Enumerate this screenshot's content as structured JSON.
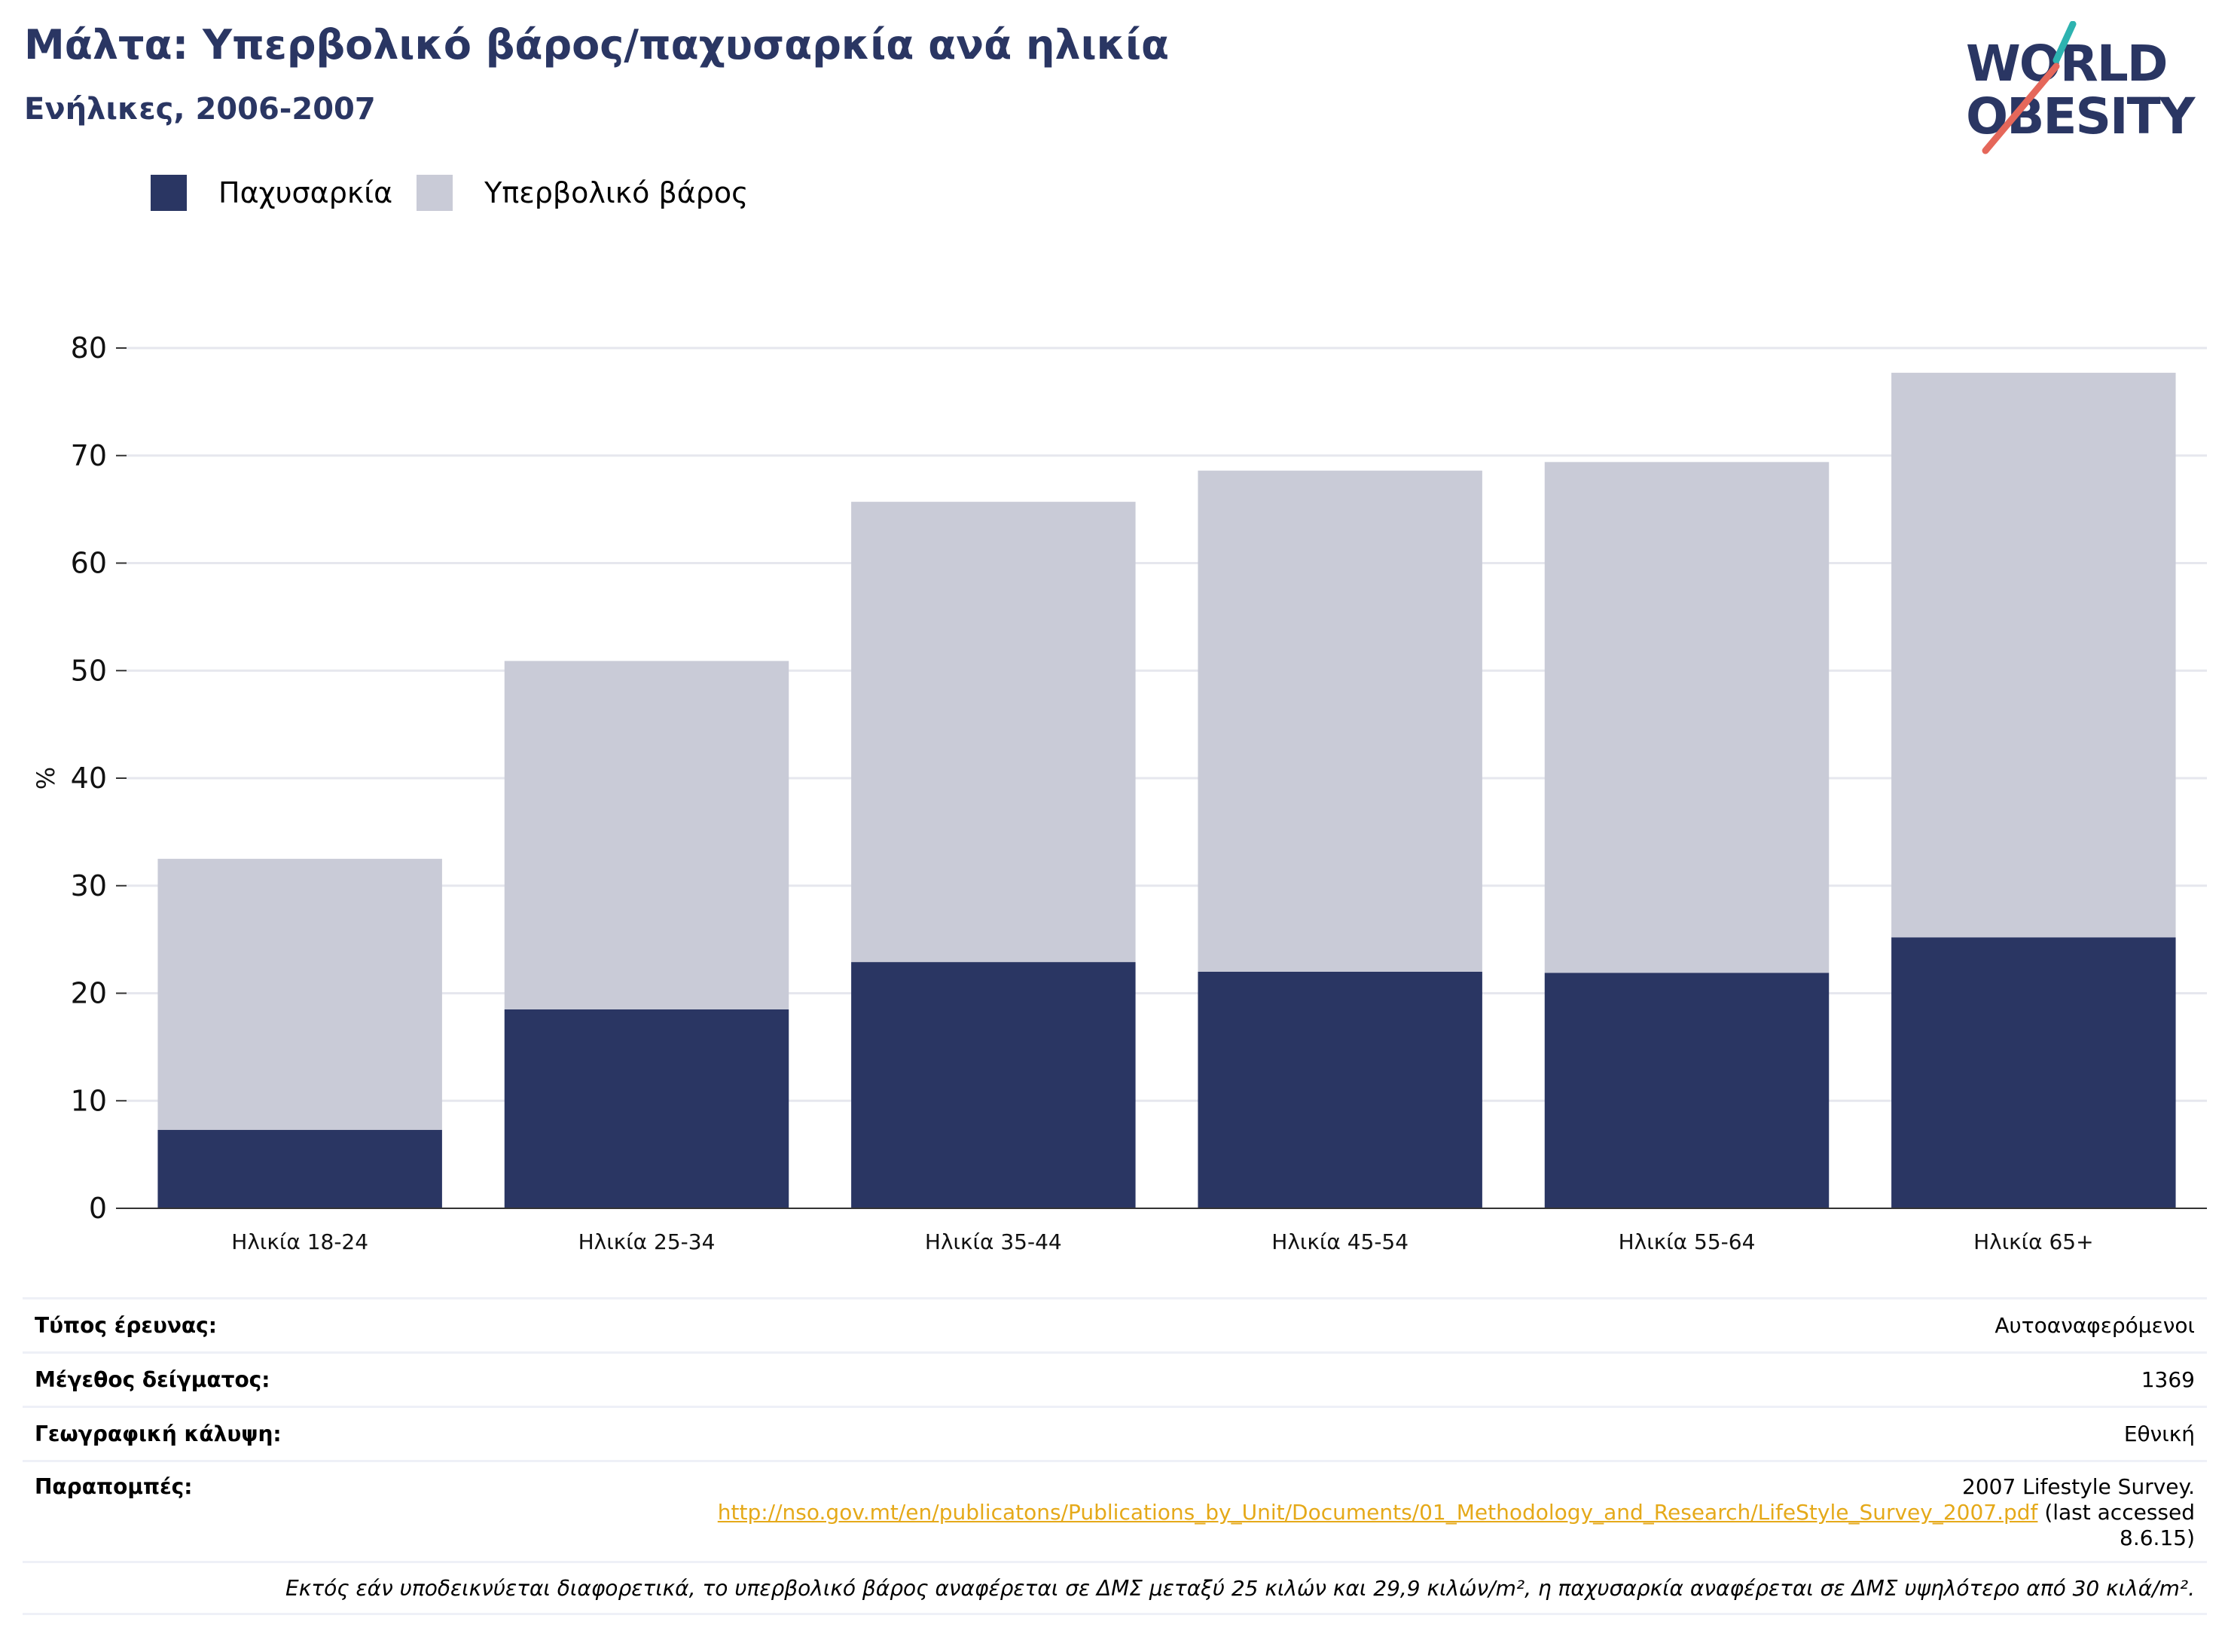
{
  "header": {
    "title": "Μάλτα: Υπερβολικό βάρος/παχυσαρκία ανά ηλικία",
    "subtitle": "Ενήλικες, 2006-2007"
  },
  "logo": {
    "line1": "WORLD",
    "line2": "OBESITY",
    "accent_teal": "#2db3b0",
    "accent_red": "#e5675a"
  },
  "colors": {
    "obesity": "#2a3663",
    "overweight": "#c9cbd7",
    "grid": "#e6e7ee",
    "axis": "#333333"
  },
  "legend": [
    {
      "label": "Παχυσαρκία",
      "color": "#2a3663"
    },
    {
      "label": "Υπερβολικό βάρος",
      "color": "#c9cbd7"
    }
  ],
  "chart_data": {
    "type": "bar",
    "stacked": true,
    "categories": [
      "Ηλικία 18-24",
      "Ηλικία 25-34",
      "Ηλικία 35-44",
      "Ηλικία 45-54",
      "Ηλικία 55-64",
      "Ηλικία 65+"
    ],
    "series": [
      {
        "name": "Παχυσαρκία",
        "values": [
          7.3,
          18.5,
          22.9,
          22.0,
          21.9,
          25.2
        ]
      },
      {
        "name": "Υπερβολικό βάρος",
        "values": [
          25.2,
          32.4,
          42.8,
          46.6,
          47.5,
          52.5
        ]
      }
    ],
    "ylabel": "%",
    "ylim": [
      0,
      80
    ],
    "yticks": [
      0,
      10,
      20,
      30,
      40,
      50,
      60,
      70,
      80
    ],
    "grid": true,
    "legend_position": "top-left"
  },
  "meta": {
    "survey_type_label": "Τύπος έρευνας:",
    "survey_type_value": "Αυτοαναφερόμενοι",
    "sample_size_label": "Μέγεθος δείγματος:",
    "sample_size_value": "1369",
    "coverage_label": "Γεωγραφική κάλυψη:",
    "coverage_value": "Εθνική",
    "references_label": "Παραπομπές:",
    "references_line1": "2007 Lifestyle Survey.",
    "references_url": "http://nso.gov.mt/en/publicatons/Publications_by_Unit/Documents/01_Methodology_and_Research/LifeStyle_Survey_2007.pdf",
    "references_after_url": " (last accessed",
    "references_line3": "8.6.15)",
    "note": "Εκτός εάν υποδεικνύεται διαφορετικά, το υπερβολικό βάρος αναφέρεται σε ΔΜΣ μεταξύ 25 κιλών και 29,9 κιλών/m², η παχυσαρκία αναφέρεται σε ΔΜΣ υψηλότερο από 30 κιλά/m²."
  }
}
